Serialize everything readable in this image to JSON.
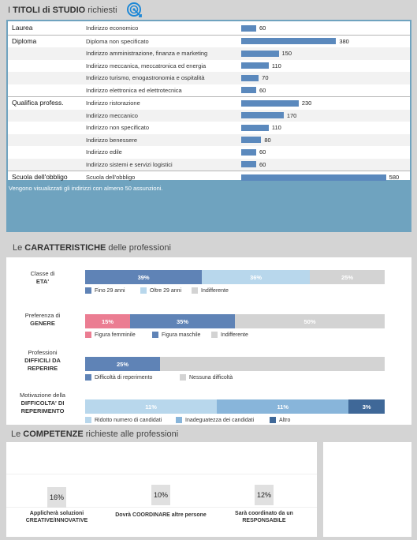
{
  "titoli": {
    "title_prefix": "I ",
    "title_bold": "TITOLI di STUDIO",
    "title_suffix": " richiesti",
    "icon": "target-icon",
    "note": "Vengono visualizzati gli indirizzi con almeno 50 assunzioni."
  },
  "chart_data": [
    {
      "type": "bar",
      "orientation": "horizontal",
      "groups": [
        {
          "name": "Laurea",
          "items": [
            {
              "label": "Indirizzo economico",
              "value": 60
            }
          ]
        },
        {
          "name": "Diploma",
          "items": [
            {
              "label": "Diploma non specificato",
              "value": 380
            },
            {
              "label": "Indirizzo amministrazione, finanza e marketing",
              "value": 150
            },
            {
              "label": "Indirizzo meccanica, meccatronica ed energia",
              "value": 110
            },
            {
              "label": "Indirizzo turismo, enogastronomia e ospitalità",
              "value": 70
            },
            {
              "label": "Indirizzo elettronica ed elettrotecnica",
              "value": 60
            }
          ]
        },
        {
          "name": "Qualifica profess.",
          "items": [
            {
              "label": "Indirizzo ristorazione",
              "value": 230
            },
            {
              "label": "Indirizzo meccanico",
              "value": 170
            },
            {
              "label": "Indirizzo non specificato",
              "value": 110
            },
            {
              "label": "Indirizzo benessere",
              "value": 80
            },
            {
              "label": "Indirizzo edile",
              "value": 60
            },
            {
              "label": "Indirizzo sistemi e servizi logistici",
              "value": 60
            }
          ]
        },
        {
          "name": "Scuola dell'obbligo",
          "items": [
            {
              "label": "Scuola dell'obbligo",
              "value": 580
            }
          ]
        }
      ],
      "xlim": [
        0,
        600
      ],
      "bar_color": "#5b89bd"
    },
    {
      "type": "bar",
      "orientation": "horizontal-stacked",
      "rows": [
        {
          "label_lines": [
            "Classe di",
            "ETA'"
          ],
          "bold_lines": [
            false,
            true
          ],
          "segments": [
            {
              "name": "Fino 29 anni",
              "value": 39,
              "text": "39%",
              "color": "#5f83b6",
              "text_color": "#ffffff"
            },
            {
              "name": "Oltre 29 anni",
              "value": 36,
              "text": "36%",
              "color": "#b8d7ec",
              "text_color": "#ffffff"
            },
            {
              "name": "Indifferente",
              "value": 25,
              "text": "25%",
              "color": "#d3d3d3",
              "text_color": "#ffffff"
            }
          ]
        },
        {
          "label_lines": [
            "Preferenza di",
            "GENERE"
          ],
          "bold_lines": [
            false,
            true
          ],
          "segments": [
            {
              "name": "Figura femminile",
              "value": 15,
              "text": "15%",
              "color": "#eb7d92",
              "text_color": "#ffffff"
            },
            {
              "name": "Figura maschile",
              "value": 35,
              "text": "35%",
              "color": "#5f83b6",
              "text_color": "#ffffff"
            },
            {
              "name": "Indifferente",
              "value": 50,
              "text": "50%",
              "color": "#d3d3d3",
              "text_color": "#ffffff"
            }
          ]
        },
        {
          "label_lines": [
            "Professioni",
            "DIFFICILI DA",
            "REPERIRE"
          ],
          "bold_lines": [
            false,
            true,
            true
          ],
          "segments": [
            {
              "name": "Difficoltà di reperimento",
              "value": 25,
              "text": "25%",
              "color": "#5f83b6",
              "text_color": "#ffffff"
            },
            {
              "name": "Nessuna difficoltà",
              "value": 75,
              "text": "",
              "color": "#d3d3d3",
              "text_color": "#ffffff"
            }
          ]
        },
        {
          "label_lines": [
            "Motivazione della",
            "DIFFICOLTA' DI",
            "REPERIMENTO"
          ],
          "bold_lines": [
            false,
            true,
            true
          ],
          "segments": [
            {
              "name": "Ridotto numero di candidati",
              "value": 11,
              "text": "11%",
              "color": "#b8d7ec",
              "text_color": "#ffffff",
              "width": 0.44
            },
            {
              "name": "Inadeguatezza dei candidati",
              "value": 11,
              "text": "11%",
              "color": "#88b5da",
              "text_color": "#ffffff",
              "width": 0.44
            },
            {
              "name": "Altro",
              "value": 3,
              "text": "3%",
              "color": "#3f6898",
              "text_color": "#ffffff",
              "width": 0.12
            }
          ]
        }
      ]
    }
  ],
  "caratteristiche": {
    "title_prefix": "Le ",
    "title_bold": "CARATTERISTICHE",
    "title_suffix": "  delle professioni"
  },
  "competenze": {
    "title_prefix": "Le ",
    "title_bold": "COMPETENZE",
    "title_suffix": " richieste alle professioni",
    "items": [
      {
        "value": "16%",
        "label_lines": [
          "Applicherà soluzioni",
          "CREATIVE/INNOVATIVE"
        ]
      },
      {
        "value": "10%",
        "label_lines": [
          "Dovrà COORDINARE altre persone"
        ]
      },
      {
        "value": "12%",
        "label_lines": [
          "Sarà coordinato da un",
          "RESPONSABILE"
        ]
      }
    ]
  }
}
